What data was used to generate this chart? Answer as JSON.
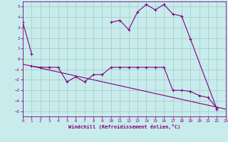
{
  "background_color": "#c8ecec",
  "grid_color": "#a0c8c8",
  "line_color": "#800080",
  "xlabel": "Windchill (Refroidissement éolien,°C)",
  "xlim": [
    0,
    23
  ],
  "ylim": [
    -5.5,
    5.5
  ],
  "yticks": [
    -5,
    -4,
    -3,
    -2,
    -1,
    0,
    1,
    2,
    3,
    4,
    5
  ],
  "xticks": [
    0,
    1,
    2,
    3,
    4,
    5,
    6,
    7,
    8,
    9,
    10,
    11,
    12,
    13,
    14,
    15,
    16,
    17,
    18,
    19,
    20,
    21,
    22,
    23
  ],
  "curve1_x": [
    0,
    1,
    10,
    11,
    12,
    13,
    14,
    15,
    16,
    17,
    18,
    19,
    22
  ],
  "curve1_y": [
    3.5,
    0.5,
    3.5,
    3.7,
    2.8,
    4.5,
    5.2,
    4.7,
    5.2,
    4.3,
    4.1,
    1.9,
    -4.8
  ],
  "curve2_x": [
    1,
    2,
    3,
    4,
    5,
    6,
    7,
    8,
    9,
    10,
    11,
    12,
    13,
    14,
    15,
    16,
    17,
    18,
    19,
    20,
    21,
    22
  ],
  "curve2_y": [
    -0.7,
    -0.8,
    -0.8,
    -0.8,
    -2.2,
    -1.7,
    -2.2,
    -1.5,
    -1.5,
    -0.8,
    -0.8,
    -0.8,
    -0.8,
    -0.8,
    -0.8,
    -0.8,
    -3.0,
    -3.0,
    -3.1,
    -3.5,
    -3.7,
    -4.7
  ],
  "refline_x": [
    0,
    23
  ],
  "refline_y": [
    -0.5,
    -4.8
  ]
}
